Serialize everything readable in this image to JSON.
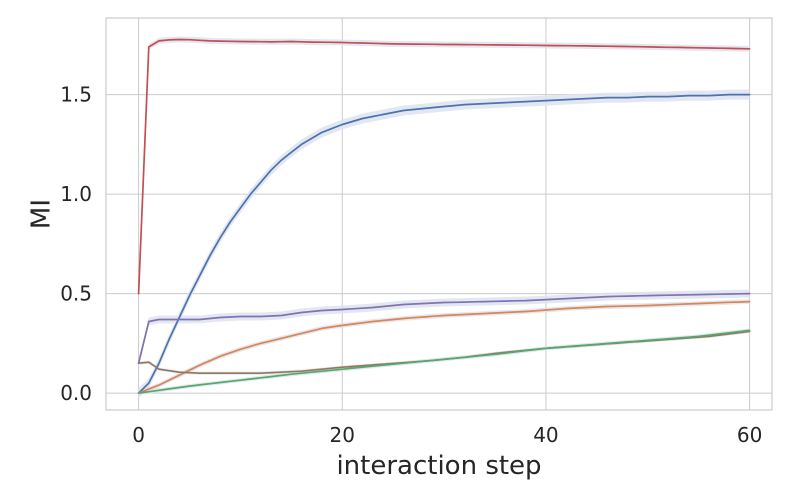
{
  "chart_data": {
    "type": "line",
    "title": "",
    "xlabel": "interaction step",
    "ylabel": "MI",
    "xlim": [
      -3.2,
      62.2
    ],
    "ylim": [
      -0.085,
      1.885
    ],
    "xticks": [
      0,
      20,
      40,
      60
    ],
    "yticks": [
      0.0,
      0.5,
      1.0,
      1.5
    ],
    "xtick_labels": [
      "0",
      "20",
      "40",
      "60"
    ],
    "ytick_labels": [
      "0.0",
      "0.5",
      "1.0",
      "1.5"
    ],
    "grid": true,
    "legend": "none",
    "band_color": "#dde3ef",
    "series": [
      {
        "color": "#c44e52",
        "band": 0.015,
        "points": [
          [
            0,
            0.5
          ],
          [
            1,
            1.74
          ],
          [
            2,
            1.77
          ],
          [
            3,
            1.775
          ],
          [
            4,
            1.777
          ],
          [
            5,
            1.776
          ],
          [
            7,
            1.77
          ],
          [
            10,
            1.767
          ],
          [
            13,
            1.765
          ],
          [
            15,
            1.767
          ],
          [
            17,
            1.764
          ],
          [
            20,
            1.762
          ],
          [
            25,
            1.755
          ],
          [
            30,
            1.752
          ],
          [
            35,
            1.75
          ],
          [
            40,
            1.747
          ],
          [
            45,
            1.744
          ],
          [
            50,
            1.74
          ],
          [
            55,
            1.735
          ],
          [
            60,
            1.73
          ]
        ]
      },
      {
        "color": "#4c72b0",
        "band": 0.025,
        "points": [
          [
            0,
            0.0
          ],
          [
            1,
            0.05
          ],
          [
            2,
            0.15
          ],
          [
            3,
            0.27
          ],
          [
            4,
            0.38
          ],
          [
            5,
            0.49
          ],
          [
            6,
            0.59
          ],
          [
            7,
            0.69
          ],
          [
            8,
            0.78
          ],
          [
            9,
            0.86
          ],
          [
            10,
            0.93
          ],
          [
            11,
            1.0
          ],
          [
            12,
            1.06
          ],
          [
            13,
            1.12
          ],
          [
            14,
            1.17
          ],
          [
            15,
            1.21
          ],
          [
            16,
            1.25
          ],
          [
            17,
            1.28
          ],
          [
            18,
            1.31
          ],
          [
            19,
            1.33
          ],
          [
            20,
            1.35
          ],
          [
            22,
            1.38
          ],
          [
            24,
            1.4
          ],
          [
            26,
            1.42
          ],
          [
            28,
            1.43
          ],
          [
            30,
            1.44
          ],
          [
            32,
            1.45
          ],
          [
            34,
            1.455
          ],
          [
            36,
            1.46
          ],
          [
            38,
            1.465
          ],
          [
            40,
            1.47
          ],
          [
            42,
            1.475
          ],
          [
            44,
            1.48
          ],
          [
            46,
            1.485
          ],
          [
            48,
            1.485
          ],
          [
            50,
            1.49
          ],
          [
            52,
            1.49
          ],
          [
            54,
            1.495
          ],
          [
            56,
            1.495
          ],
          [
            58,
            1.5
          ],
          [
            60,
            1.5
          ]
        ]
      },
      {
        "color": "#8172b2",
        "band": 0.02,
        "points": [
          [
            0,
            0.15
          ],
          [
            1,
            0.36
          ],
          [
            2,
            0.37
          ],
          [
            4,
            0.37
          ],
          [
            6,
            0.37
          ],
          [
            8,
            0.38
          ],
          [
            10,
            0.385
          ],
          [
            12,
            0.385
          ],
          [
            14,
            0.39
          ],
          [
            16,
            0.405
          ],
          [
            18,
            0.415
          ],
          [
            20,
            0.42
          ],
          [
            23,
            0.43
          ],
          [
            26,
            0.445
          ],
          [
            30,
            0.455
          ],
          [
            34,
            0.46
          ],
          [
            38,
            0.465
          ],
          [
            42,
            0.475
          ],
          [
            46,
            0.485
          ],
          [
            50,
            0.49
          ],
          [
            55,
            0.495
          ],
          [
            60,
            0.5
          ]
        ]
      },
      {
        "color": "#dd8452",
        "band": 0.012,
        "points": [
          [
            0,
            0.0
          ],
          [
            2,
            0.04
          ],
          [
            4,
            0.09
          ],
          [
            6,
            0.14
          ],
          [
            8,
            0.185
          ],
          [
            10,
            0.22
          ],
          [
            12,
            0.25
          ],
          [
            14,
            0.275
          ],
          [
            16,
            0.3
          ],
          [
            18,
            0.325
          ],
          [
            20,
            0.34
          ],
          [
            23,
            0.36
          ],
          [
            26,
            0.375
          ],
          [
            30,
            0.39
          ],
          [
            34,
            0.4
          ],
          [
            38,
            0.41
          ],
          [
            42,
            0.425
          ],
          [
            46,
            0.435
          ],
          [
            50,
            0.44
          ],
          [
            55,
            0.45
          ],
          [
            60,
            0.46
          ]
        ]
      },
      {
        "color": "#937860",
        "band": 0.008,
        "points": [
          [
            0,
            0.15
          ],
          [
            1,
            0.155
          ],
          [
            2,
            0.12
          ],
          [
            4,
            0.105
          ],
          [
            6,
            0.1
          ],
          [
            8,
            0.1
          ],
          [
            10,
            0.1
          ],
          [
            12,
            0.1
          ],
          [
            14,
            0.105
          ],
          [
            16,
            0.11
          ],
          [
            18,
            0.12
          ],
          [
            20,
            0.13
          ],
          [
            24,
            0.145
          ],
          [
            28,
            0.16
          ],
          [
            32,
            0.18
          ],
          [
            36,
            0.205
          ],
          [
            40,
            0.225
          ],
          [
            44,
            0.24
          ],
          [
            48,
            0.255
          ],
          [
            52,
            0.27
          ],
          [
            56,
            0.285
          ],
          [
            60,
            0.31
          ]
        ]
      },
      {
        "color": "#55a868",
        "band": 0.01,
        "points": [
          [
            0,
            0.0
          ],
          [
            5,
            0.035
          ],
          [
            10,
            0.065
          ],
          [
            15,
            0.095
          ],
          [
            20,
            0.12
          ],
          [
            25,
            0.145
          ],
          [
            30,
            0.17
          ],
          [
            35,
            0.195
          ],
          [
            40,
            0.225
          ],
          [
            45,
            0.245
          ],
          [
            50,
            0.265
          ],
          [
            55,
            0.285
          ],
          [
            60,
            0.315
          ]
        ]
      }
    ]
  }
}
